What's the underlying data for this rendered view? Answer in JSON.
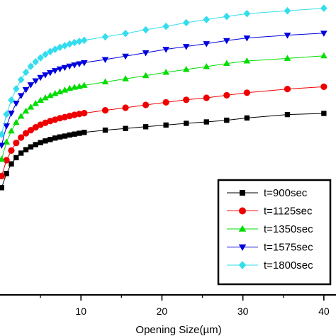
{
  "chart_data": {
    "type": "line",
    "title": "",
    "xlabel": "Opening Size(µm)",
    "ylabel": "",
    "xlim": [
      0,
      41.5
    ],
    "ylim": [
      0,
      100
    ],
    "xticks": [
      10,
      20,
      30,
      40
    ],
    "grid": false,
    "legend_position": "bottom-right",
    "series": [
      {
        "name": "t=900sec",
        "color": "#000000",
        "marker": "square",
        "x": [
          0.2,
          0.8,
          1.4,
          2.0,
          2.6,
          3.2,
          3.8,
          4.4,
          5.0,
          5.6,
          6.2,
          6.8,
          7.4,
          8.0,
          8.6,
          9.2,
          9.8,
          10.4,
          13.0,
          15.5,
          18.0,
          20.5,
          23.0,
          25.5,
          28.0,
          30.5,
          35.5,
          40.0
        ],
        "y": [
          37.8,
          42.8,
          46.2,
          48.4,
          50.0,
          51.2,
          52.2,
          53.0,
          53.7,
          54.3,
          54.8,
          55.3,
          55.7,
          56.0,
          56.4,
          56.7,
          57.0,
          57.3,
          58.1,
          58.7,
          59.3,
          59.9,
          60.5,
          61.0,
          61.6,
          62.4,
          63.6,
          64.0
        ]
      },
      {
        "name": "t=1125sec",
        "color": "#ee0000",
        "marker": "circle",
        "x": [
          0.2,
          0.8,
          1.4,
          2.0,
          2.6,
          3.2,
          3.8,
          4.4,
          5.0,
          5.6,
          6.2,
          6.8,
          7.4,
          8.0,
          8.6,
          9.2,
          9.8,
          10.4,
          13.0,
          15.5,
          18.0,
          20.5,
          23.0,
          25.5,
          28.0,
          30.5,
          35.5,
          40.0
        ],
        "y": [
          41.9,
          47.5,
          50.9,
          53.6,
          55.5,
          57.0,
          58.1,
          59.1,
          60.0,
          60.7,
          61.3,
          61.8,
          62.3,
          62.7,
          63.1,
          63.5,
          63.8,
          64.1,
          65.1,
          66.0,
          67.0,
          67.9,
          68.8,
          69.5,
          70.4,
          71.3,
          72.6,
          73.4
        ]
      },
      {
        "name": "t=1350sec",
        "color": "#00dd00",
        "marker": "triangle-up",
        "x": [
          0.2,
          0.8,
          1.4,
          2.0,
          2.6,
          3.2,
          3.8,
          4.4,
          5.0,
          5.6,
          6.2,
          6.8,
          7.4,
          8.0,
          8.6,
          9.2,
          9.8,
          10.4,
          13.0,
          15.5,
          18.0,
          20.5,
          23.0,
          25.5,
          28.0,
          30.5,
          35.5,
          40.0
        ],
        "y": [
          47.8,
          53.9,
          57.8,
          60.8,
          63.0,
          64.8,
          66.2,
          67.5,
          68.6,
          69.5,
          70.3,
          71.0,
          71.6,
          72.2,
          72.8,
          73.2,
          73.5,
          73.9,
          75.1,
          76.2,
          77.3,
          78.5,
          79.5,
          80.5,
          81.6,
          82.5,
          83.4,
          84.3
        ]
      },
      {
        "name": "t=1575sec",
        "color": "#0000dd",
        "marker": "triangle-down",
        "x": [
          0.2,
          0.8,
          1.4,
          2.0,
          2.6,
          3.2,
          3.8,
          4.4,
          5.0,
          5.6,
          6.2,
          6.8,
          7.4,
          8.0,
          8.6,
          9.2,
          9.8,
          10.4,
          13.0,
          15.5,
          18.0,
          20.5,
          23.0,
          25.5,
          28.0,
          30.5,
          35.5,
          40.0
        ],
        "y": [
          52.8,
          59.6,
          64.1,
          67.6,
          70.3,
          72.4,
          74.1,
          75.5,
          76.7,
          77.6,
          78.4,
          79.1,
          79.7,
          80.2,
          80.7,
          81.1,
          81.5,
          81.9,
          83.0,
          84.2,
          85.4,
          86.6,
          87.6,
          88.6,
          89.7,
          90.6,
          91.6,
          92.3
        ]
      },
      {
        "name": "t=1800sec",
        "color": "#33ddee",
        "marker": "diamond",
        "x": [
          0.2,
          0.8,
          1.4,
          2.0,
          2.6,
          3.2,
          3.8,
          4.4,
          5.0,
          5.6,
          6.2,
          6.8,
          7.4,
          8.0,
          8.6,
          9.2,
          9.8,
          10.4,
          13.0,
          15.5,
          18.0,
          20.5,
          23.0,
          25.5,
          28.0,
          30.5,
          35.5,
          40.0
        ],
        "y": [
          56.6,
          63.7,
          68.7,
          72.7,
          75.9,
          78.5,
          80.6,
          82.2,
          83.6,
          84.8,
          85.8,
          86.6,
          87.3,
          87.9,
          88.5,
          89.0,
          89.4,
          89.8,
          91.0,
          92.2,
          93.5,
          94.7,
          96.0,
          97.1,
          98.2,
          99.2,
          100.2,
          101.1
        ]
      }
    ]
  }
}
